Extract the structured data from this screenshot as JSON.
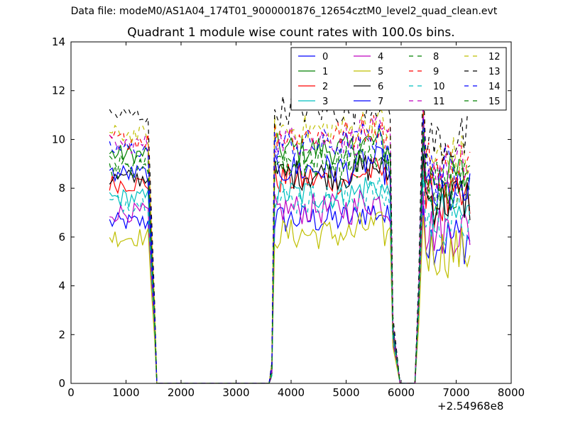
{
  "figure": {
    "suptitle": "Data file: modeM0/AS1A04_174T01_9000001876_12654cztM0_level2_quad_clean.evt",
    "title": "Quadrant 1 module wise count rates with 100.0s bins.",
    "x_offset_label": "+2.54968e8"
  },
  "chart_data": {
    "type": "line",
    "title": "Quadrant 1 module wise count rates with 100.0s bins.",
    "xlabel": "",
    "ylabel": "",
    "xlim": [
      0,
      8000
    ],
    "ylim": [
      0,
      14
    ],
    "xticks": [
      "0",
      "1000",
      "2000",
      "3000",
      "4000",
      "5000",
      "6000",
      "7000",
      "8000"
    ],
    "yticks": [
      "0",
      "2",
      "4",
      "6",
      "8",
      "10",
      "12",
      "14"
    ],
    "legend_position": "top-right",
    "x": [
      700,
      800,
      900,
      1000,
      1100,
      1200,
      1300,
      1400,
      1500,
      1600,
      1700,
      1800,
      1900,
      2000,
      2100,
      2200,
      2300,
      2400,
      2500,
      2600,
      2700,
      2800,
      2900,
      3000,
      3100,
      3200,
      3300,
      3400,
      3500,
      3600,
      3700,
      3800,
      3900,
      4000,
      4100,
      4200,
      4300,
      4400,
      4500,
      4600,
      4700,
      4800,
      4900,
      5000,
      5100,
      5200,
      5300,
      5400,
      5500,
      5600,
      5700,
      5800,
      5900,
      6000,
      6100,
      6200,
      6300,
      6400,
      6500,
      6600,
      6700,
      6800,
      6900,
      7000,
      7100,
      7200
    ],
    "series": [
      {
        "name": "0",
        "color": "#0000ff",
        "dash": false,
        "base": 6.6
      },
      {
        "name": "1",
        "color": "#008000",
        "dash": false,
        "base": 9.4
      },
      {
        "name": "2",
        "color": "#ff0000",
        "dash": false,
        "base": 8.2
      },
      {
        "name": "3",
        "color": "#00bfbf",
        "dash": false,
        "base": 7.6
      },
      {
        "name": "4",
        "color": "#bf00bf",
        "dash": false,
        "base": 7.0
      },
      {
        "name": "5",
        "color": "#bfbf00",
        "dash": false,
        "base": 6.0
      },
      {
        "name": "6",
        "color": "#000000",
        "dash": false,
        "base": 8.4
      },
      {
        "name": "7",
        "color": "#0000ff",
        "dash": false,
        "base": 8.6
      },
      {
        "name": "8",
        "color": "#008000",
        "dash": true,
        "base": 9.0
      },
      {
        "name": "9",
        "color": "#ff0000",
        "dash": true,
        "base": 10.0
      },
      {
        "name": "10",
        "color": "#00bfbf",
        "dash": true,
        "base": 7.4
      },
      {
        "name": "11",
        "color": "#bf00bf",
        "dash": true,
        "base": 9.8
      },
      {
        "name": "12",
        "color": "#bfbf00",
        "dash": true,
        "base": 10.2
      },
      {
        "name": "13",
        "color": "#000000",
        "dash": true,
        "base": 11.0
      },
      {
        "name": "14",
        "color": "#0000ff",
        "dash": true,
        "base": 9.6
      },
      {
        "name": "15",
        "color": "#008000",
        "dash": true,
        "base": 8.8
      }
    ],
    "segments": [
      {
        "x_start": 700,
        "x_end": 1400,
        "level": 1.0,
        "drop_to_zero_at": 1560
      },
      {
        "x_start": 3700,
        "x_end": 5800,
        "level": 1.05,
        "rise_from": 3600
      },
      {
        "x_start": 6400,
        "x_end": 7250,
        "level": 0.95,
        "rise_from": 6250
      }
    ]
  }
}
